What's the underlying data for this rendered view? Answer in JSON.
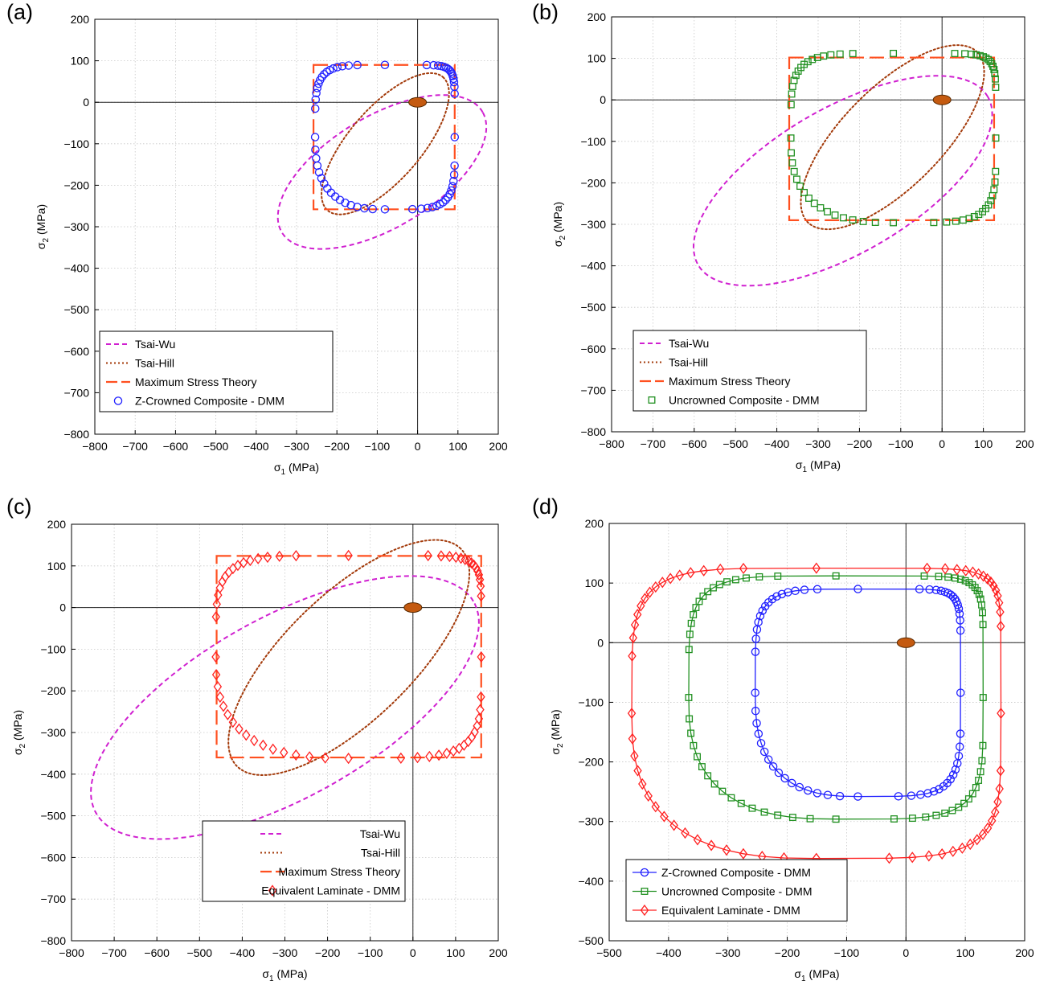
{
  "chart_data": [
    {
      "type": "line",
      "panel_label": "(a)",
      "xlabel": "σ1 (MPa)",
      "ylabel": "σ2 (MPa)",
      "xlim": [
        -800,
        200
      ],
      "ylim": [
        -800,
        200
      ],
      "xticks": [
        -800,
        -700,
        -600,
        -500,
        -400,
        -300,
        -200,
        -100,
        0,
        100,
        200
      ],
      "yticks": [
        -800,
        -700,
        -600,
        -500,
        -400,
        -300,
        -200,
        -100,
        0,
        100,
        200
      ],
      "grid": true,
      "legend_position": "bottom-left",
      "series": [
        {
          "name": "Tsai-Wu",
          "style": "dashed",
          "color": "#d020d0",
          "ellipse": {
            "cx": -88,
            "cy": -168,
            "a": 288,
            "b": 135,
            "angle": 30
          }
        },
        {
          "name": "Tsai-Hill",
          "style": "dotted",
          "color": "#a33a0a",
          "ellipse": {
            "cx": -80,
            "cy": -100,
            "a": 215,
            "b": 88,
            "angle": 48
          }
        },
        {
          "name": "Maximum Stress Theory",
          "style": "longdash",
          "color": "#ff5020",
          "rect": {
            "x1": -258,
            "x2": 92,
            "y1": -258,
            "y2": 90
          }
        },
        {
          "name": "Z-Crowned Composite - DMM",
          "style": "markers",
          "marker": "circle",
          "color": "#2020ff",
          "loop": {
            "xl": -254,
            "xr": 92,
            "yb": -258,
            "yt": 90
          }
        }
      ]
    },
    {
      "type": "line",
      "panel_label": "(b)",
      "xlabel": "σ1 (MPa)",
      "ylabel": "σ2 (MPa)",
      "xlim": [
        -800,
        200
      ],
      "ylim": [
        -800,
        200
      ],
      "xticks": [
        -800,
        -700,
        -600,
        -500,
        -400,
        -300,
        -200,
        -100,
        0,
        100,
        200
      ],
      "yticks": [
        -800,
        -700,
        -600,
        -500,
        -400,
        -300,
        -200,
        -100,
        0,
        100,
        200
      ],
      "grid": true,
      "legend_position": "bottom-left",
      "series": [
        {
          "name": "Tsai-Wu",
          "style": "dashed",
          "color": "#d020d0",
          "ellipse": {
            "cx": -240,
            "cy": -195,
            "a": 405,
            "b": 175,
            "angle": 30
          }
        },
        {
          "name": "Tsai-Hill",
          "style": "dotted",
          "color": "#a33a0a",
          "ellipse": {
            "cx": -120,
            "cy": -90,
            "a": 290,
            "b": 120,
            "angle": 45
          }
        },
        {
          "name": "Maximum Stress Theory",
          "style": "longdash",
          "color": "#ff5020",
          "rect": {
            "x1": -370,
            "x2": 126,
            "y1": -290,
            "y2": 102
          }
        },
        {
          "name": "Uncrowned Composite - DMM",
          "style": "markers",
          "marker": "square",
          "color": "#209020",
          "loop": {
            "xl": -366,
            "xr": 130,
            "yb": -296,
            "yt": 112
          }
        }
      ]
    },
    {
      "type": "line",
      "panel_label": "(c)",
      "xlabel": "σ1 (MPa)",
      "ylabel": "σ2 (MPa)",
      "xlim": [
        -800,
        200
      ],
      "ylim": [
        -800,
        200
      ],
      "xticks": [
        -800,
        -700,
        -600,
        -500,
        -400,
        -300,
        -200,
        -100,
        0,
        100,
        200
      ],
      "yticks": [
        -800,
        -700,
        -600,
        -500,
        -400,
        -300,
        -200,
        -100,
        0,
        100,
        200
      ],
      "grid": true,
      "legend_position": "bottom-right",
      "series": [
        {
          "name": "Tsai-Wu",
          "style": "dashed",
          "color": "#d020d0",
          "ellipse": {
            "cx": -300,
            "cy": -240,
            "a": 510,
            "b": 215,
            "angle": 30
          }
        },
        {
          "name": "Tsai-Hill",
          "style": "dotted",
          "color": "#a33a0a",
          "ellipse": {
            "cx": -150,
            "cy": -120,
            "a": 370,
            "b": 150,
            "angle": 45
          }
        },
        {
          "name": "Maximum Stress Theory",
          "style": "longdash",
          "color": "#ff5020",
          "rect": {
            "x1": -460,
            "x2": 160,
            "y1": -360,
            "y2": 124
          }
        },
        {
          "name": "Equivalent Laminate - DMM",
          "style": "markers",
          "marker": "diamond",
          "color": "#ff2020",
          "loop": {
            "xl": -462,
            "xr": 160,
            "yb": -362,
            "yt": 125
          }
        }
      ]
    },
    {
      "type": "line",
      "panel_label": "(d)",
      "xlabel": "σ1 (MPa)",
      "ylabel": "σ2 (MPa)",
      "xlim": [
        -500,
        200
      ],
      "ylim": [
        -500,
        200
      ],
      "xticks": [
        -500,
        -400,
        -300,
        -200,
        -100,
        0,
        100,
        200
      ],
      "yticks": [
        -500,
        -400,
        -300,
        -200,
        -100,
        0,
        100,
        200
      ],
      "grid": true,
      "legend_position": "bottom-left",
      "series": [
        {
          "name": "Z-Crowned Composite - DMM",
          "style": "line-markers",
          "marker": "circle",
          "color": "#2020ff",
          "loop": {
            "xl": -254,
            "xr": 92,
            "yb": -258,
            "yt": 90
          }
        },
        {
          "name": "Uncrowned Composite - DMM",
          "style": "line-markers",
          "marker": "square",
          "color": "#209020",
          "loop": {
            "xl": -366,
            "xr": 130,
            "yb": -296,
            "yt": 112
          }
        },
        {
          "name": "Equivalent Laminate - DMM",
          "style": "line-markers",
          "marker": "diamond",
          "color": "#ff2020",
          "loop": {
            "xl": -462,
            "xr": 160,
            "yb": -362,
            "yt": 125
          }
        }
      ]
    }
  ]
}
